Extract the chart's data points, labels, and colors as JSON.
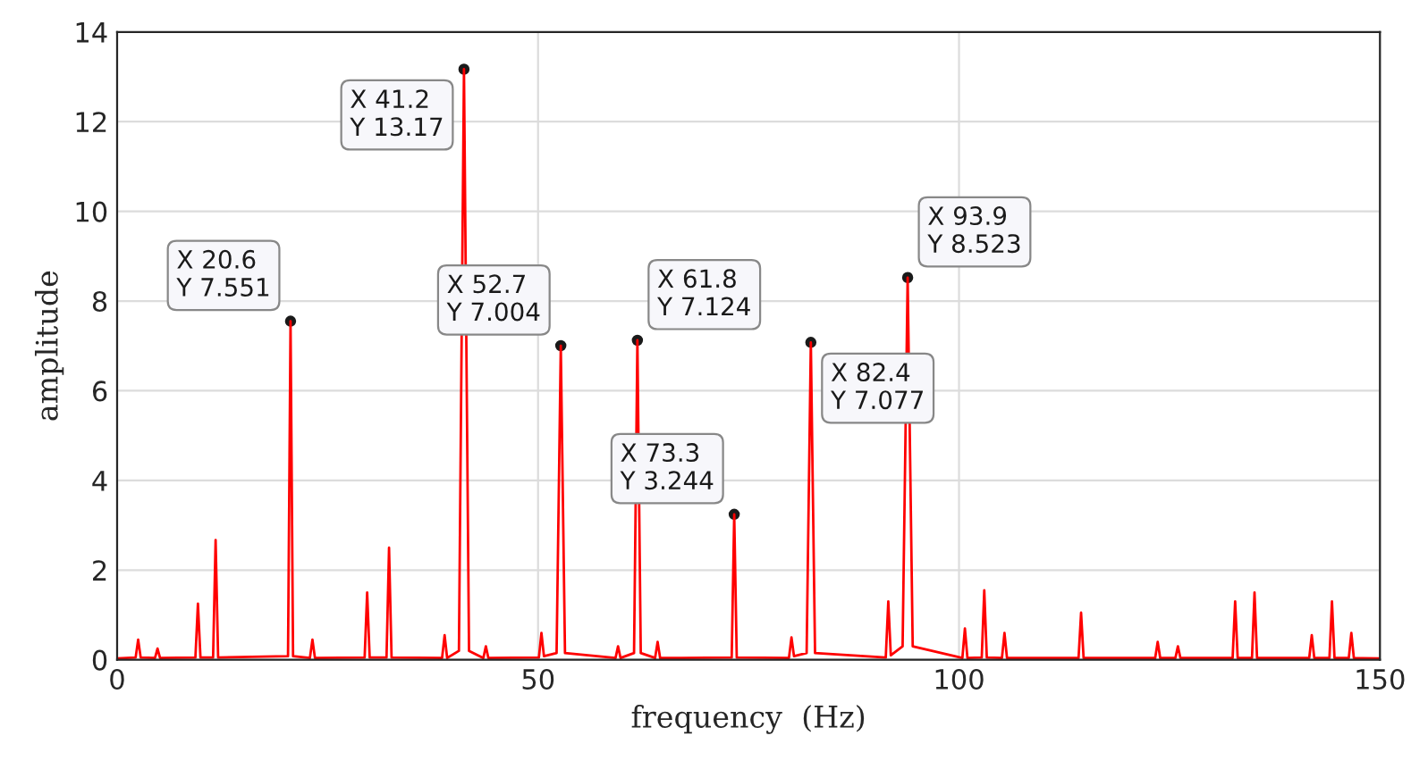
{
  "chart_data": {
    "type": "line",
    "xlabel": "frequency  (Hz)",
    "ylabel": "amplitude",
    "xlim": [
      0,
      150
    ],
    "ylim": [
      0,
      14
    ],
    "xticks": [
      0,
      50,
      100,
      150
    ],
    "yticks": [
      0,
      2,
      4,
      6,
      8,
      10,
      12,
      14
    ],
    "grid": true,
    "marker": "none",
    "line_style": "solid",
    "series": [
      {
        "color": "#ff0000",
        "x": [
          0,
          2.2,
          2.5,
          2.8,
          4.5,
          4.8,
          5.1,
          9.3,
          9.6,
          9.9,
          11.4,
          11.7,
          12.0,
          20.3,
          20.6,
          20.9,
          22.9,
          23.2,
          23.5,
          29.4,
          29.7,
          30.0,
          32.0,
          32.3,
          32.6,
          38.6,
          38.9,
          39.2,
          40.6,
          41.2,
          41.8,
          43.5,
          43.8,
          44.1,
          50.1,
          50.4,
          50.7,
          52.2,
          52.7,
          53.2,
          59.2,
          59.5,
          59.8,
          61.4,
          61.8,
          62.2,
          63.9,
          64.2,
          64.5,
          73.0,
          73.3,
          73.6,
          79.8,
          80.1,
          80.4,
          81.9,
          82.4,
          82.9,
          91.3,
          91.6,
          91.9,
          93.3,
          93.9,
          94.5,
          100.4,
          100.7,
          101.0,
          102.7,
          103.0,
          103.3,
          105.1,
          105.4,
          105.7,
          114.2,
          114.5,
          114.8,
          123.3,
          123.6,
          123.9,
          125.7,
          126.0,
          126.3,
          132.5,
          132.8,
          133.1,
          134.8,
          135.1,
          135.4,
          141.6,
          141.9,
          142.2,
          144.0,
          144.3,
          144.6,
          146.3,
          146.6,
          146.9,
          150
        ],
        "values": [
          0.03,
          0.05,
          0.45,
          0.05,
          0.04,
          0.25,
          0.04,
          0.05,
          1.25,
          0.05,
          0.05,
          2.67,
          0.05,
          0.08,
          7.551,
          0.08,
          0.04,
          0.45,
          0.04,
          0.05,
          1.5,
          0.05,
          0.05,
          2.5,
          0.05,
          0.04,
          0.55,
          0.04,
          0.2,
          13.17,
          0.2,
          0.04,
          0.3,
          0.04,
          0.05,
          0.6,
          0.08,
          0.15,
          7.004,
          0.15,
          0.04,
          0.3,
          0.04,
          0.15,
          7.124,
          0.15,
          0.04,
          0.4,
          0.04,
          0.05,
          3.244,
          0.05,
          0.04,
          0.5,
          0.08,
          0.15,
          7.077,
          0.15,
          0.05,
          1.3,
          0.1,
          0.3,
          8.523,
          0.3,
          0.04,
          0.7,
          0.04,
          0.05,
          1.55,
          0.05,
          0.04,
          0.6,
          0.04,
          0.04,
          1.05,
          0.04,
          0.04,
          0.4,
          0.04,
          0.04,
          0.3,
          0.04,
          0.04,
          1.3,
          0.04,
          0.04,
          1.5,
          0.04,
          0.04,
          0.55,
          0.04,
          0.04,
          1.3,
          0.04,
          0.04,
          0.6,
          0.04,
          0.03
        ]
      }
    ],
    "annotations": [
      {
        "text": "X 20.6\nY 7.551",
        "x": 20.6,
        "y": 7.551
      },
      {
        "text": "X 41.2\nY 13.17",
        "x": 41.2,
        "y": 13.17
      },
      {
        "text": "X 52.7\nY 7.004",
        "x": 52.7,
        "y": 7.004
      },
      {
        "text": "X 61.8\nY 7.124",
        "x": 61.8,
        "y": 7.124
      },
      {
        "text": "X 73.3\nY 3.244",
        "x": 73.3,
        "y": 3.244
      },
      {
        "text": "X 82.4\nY 7.077",
        "x": 82.4,
        "y": 7.077
      },
      {
        "text": "X 93.9\nY 8.523",
        "x": 93.9,
        "y": 8.523
      }
    ]
  }
}
